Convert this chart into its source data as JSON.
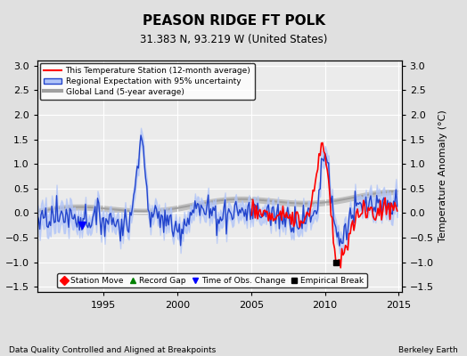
{
  "title": "PEASON RIDGE FT POLK",
  "subtitle": "31.383 N, 93.219 W (United States)",
  "xlabel_left": "Data Quality Controlled and Aligned at Breakpoints",
  "xlabel_right": "Berkeley Earth",
  "ylabel": "Temperature Anomaly (°C)",
  "xlim": [
    1990.5,
    2015.2
  ],
  "ylim": [
    -1.6,
    3.1
  ],
  "yticks": [
    -1.5,
    -1.0,
    -0.5,
    0.0,
    0.5,
    1.0,
    1.5,
    2.0,
    2.5,
    3.0
  ],
  "xticks": [
    1995,
    2000,
    2005,
    2010,
    2015
  ],
  "background_color": "#e0e0e0",
  "plot_bg_color": "#ebebeb",
  "grid_color": "#ffffff",
  "empirical_break_x": 2010.75,
  "empirical_break_y": -1.0,
  "obs_change_x": 1993.5,
  "obs_change_y": -0.25
}
